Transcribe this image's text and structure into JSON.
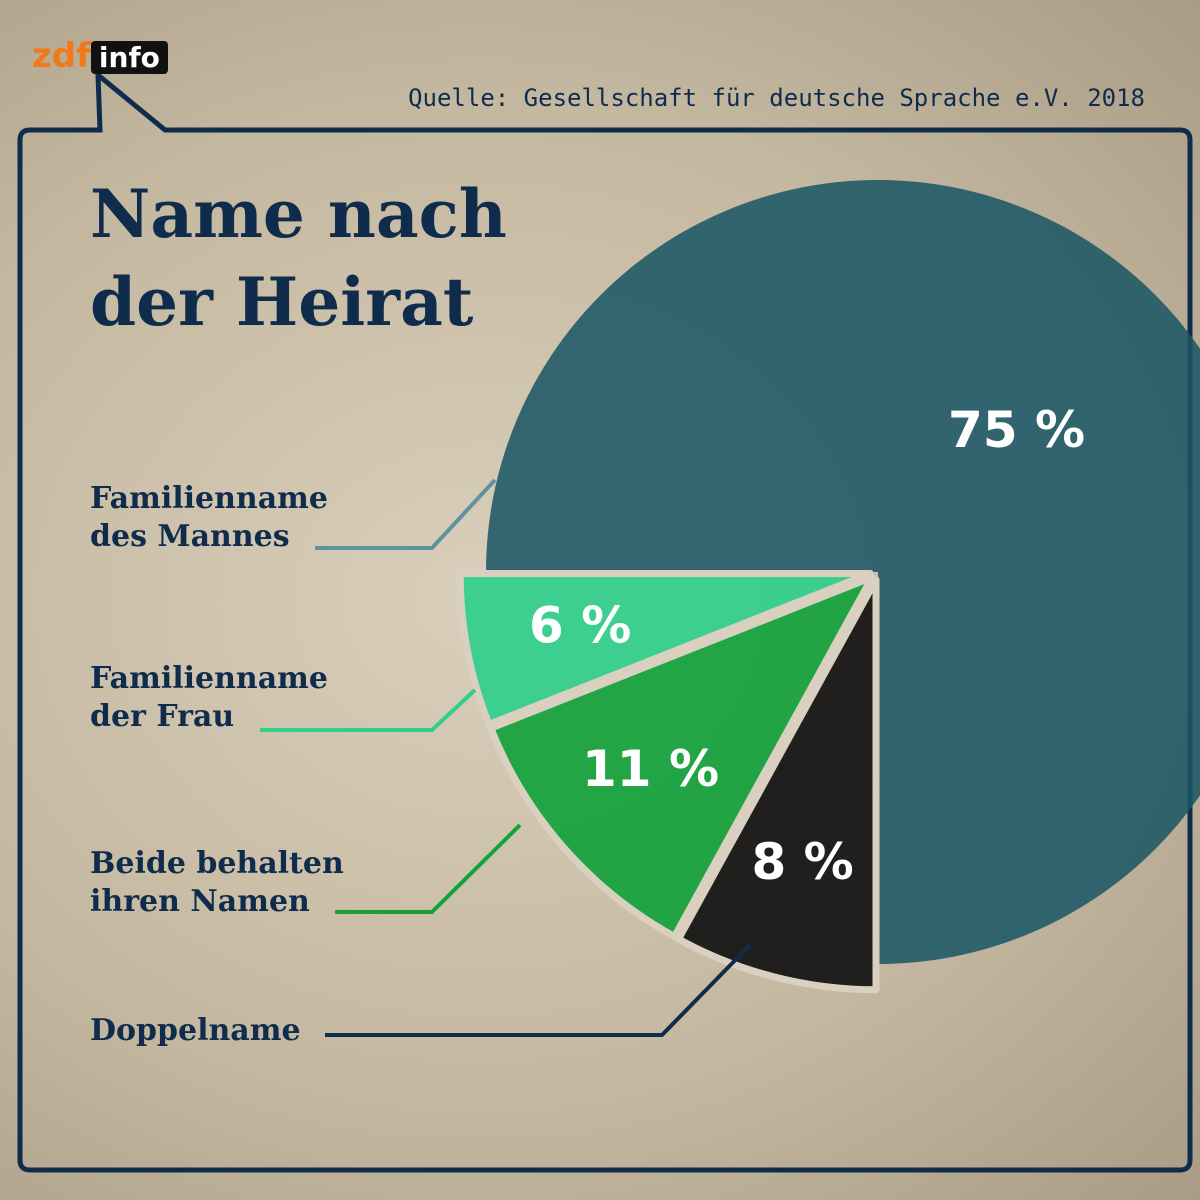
{
  "logo": {
    "brand": "zdf",
    "channel": "info"
  },
  "chart_data": {
    "type": "pie",
    "title": "Name nach der Heirat",
    "source": "Quelle: Gesellschaft für deutsche Sprache e.V. 2018",
    "categories": [
      "Familienname des Mannes",
      "Familienname der Frau",
      "Beide behalten ihren Namen",
      "Doppelname"
    ],
    "values": [
      75,
      6,
      11,
      8
    ],
    "value_labels": [
      "75 %",
      "6 %",
      "11 %",
      "8 %"
    ],
    "colors": [
      "#1d5866",
      "#2fcf8c",
      "#13a23c",
      "#111111"
    ]
  }
}
